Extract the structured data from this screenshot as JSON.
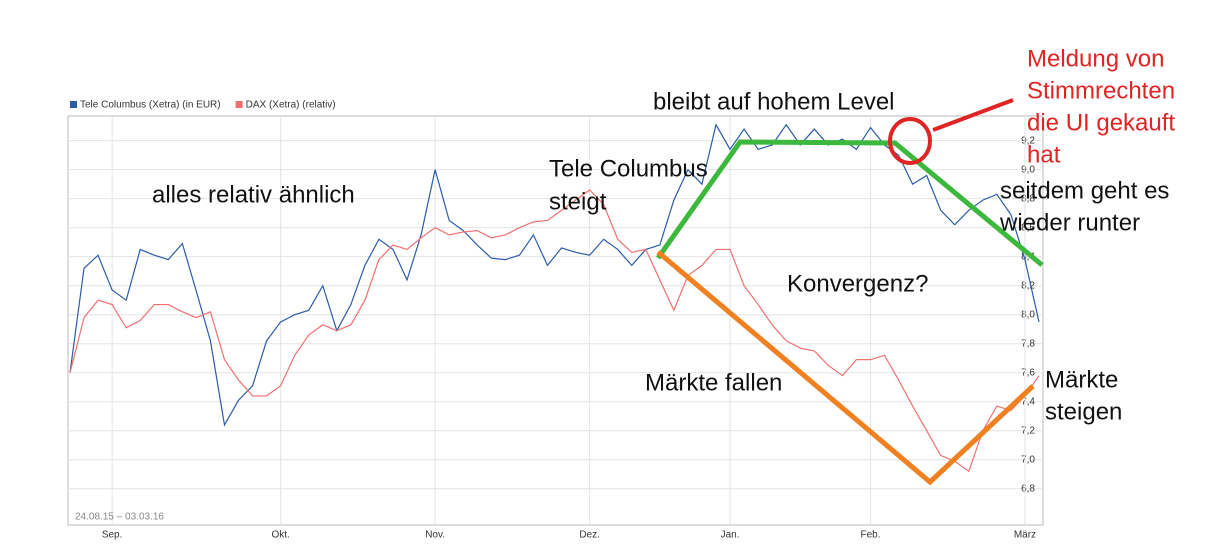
{
  "chart_data": {
    "type": "line",
    "legend": "top-left",
    "date_range": "24.08.15 – 03.03.16",
    "categories": [
      null,
      null,
      null,
      "Sep.",
      null,
      null,
      null,
      null,
      null,
      null,
      null,
      null,
      null,
      null,
      null,
      "Okt.",
      null,
      null,
      null,
      null,
      null,
      null,
      null,
      null,
      null,
      null,
      "Nov.",
      null,
      null,
      null,
      null,
      null,
      null,
      null,
      null,
      null,
      null,
      "Dez.",
      null,
      null,
      null,
      null,
      null,
      null,
      null,
      null,
      null,
      "Jan.",
      null,
      null,
      null,
      null,
      null,
      null,
      null,
      null,
      null,
      "Feb.",
      null,
      null,
      null,
      null,
      null,
      null,
      null,
      null,
      null,
      null,
      "März",
      null
    ],
    "series": [
      {
        "name": "Tele Columbus (Xetra) (in EUR)",
        "color": "#2a5caa",
        "values": [
          7.6,
          8.32,
          8.41,
          8.17,
          8.1,
          8.45,
          8.41,
          8.38,
          8.49,
          8.16,
          7.82,
          7.24,
          7.41,
          7.51,
          7.82,
          7.95,
          8.0,
          8.03,
          8.2,
          7.89,
          8.07,
          8.34,
          8.52,
          8.45,
          8.24,
          8.55,
          9.0,
          8.65,
          8.58,
          8.48,
          8.39,
          8.38,
          8.41,
          8.55,
          8.34,
          8.46,
          8.43,
          8.41,
          8.52,
          8.45,
          8.34,
          8.45,
          8.48,
          8.79,
          9.0,
          8.9,
          9.31,
          9.14,
          9.28,
          9.14,
          9.17,
          9.31,
          9.17,
          9.28,
          9.17,
          9.21,
          9.14,
          9.29,
          9.17,
          9.1,
          8.9,
          8.96,
          8.72,
          8.62,
          8.72,
          8.79,
          8.83,
          8.69,
          8.38,
          7.95
        ]
      },
      {
        "name": "DAX (Xetra) (relativ)",
        "color": "#f07070",
        "values": [
          7.6,
          7.98,
          8.1,
          8.07,
          7.91,
          7.96,
          8.07,
          8.07,
          8.02,
          7.98,
          8.02,
          7.69,
          7.55,
          7.44,
          7.44,
          7.51,
          7.72,
          7.86,
          7.93,
          7.89,
          7.93,
          8.1,
          8.38,
          8.48,
          8.45,
          8.53,
          8.6,
          8.55,
          8.57,
          8.58,
          8.53,
          8.55,
          8.6,
          8.64,
          8.65,
          8.72,
          8.79,
          8.86,
          8.76,
          8.52,
          8.43,
          8.45,
          8.24,
          8.03,
          8.27,
          8.34,
          8.45,
          8.45,
          8.2,
          8.07,
          7.93,
          7.82,
          7.77,
          7.75,
          7.65,
          7.58,
          7.69,
          7.69,
          7.72,
          7.55,
          7.37,
          7.2,
          7.03,
          6.99,
          6.92,
          7.2,
          7.37,
          7.34,
          7.44,
          7.58
        ]
      }
    ],
    "ylim": [
      6.55,
      9.37
    ],
    "yticks": [
      {
        "value": 6.8,
        "label": "6,8"
      },
      {
        "value": 7.0,
        "label": "7,0"
      },
      {
        "value": 7.2,
        "label": "7,2"
      },
      {
        "value": 7.4,
        "label": "7,4"
      },
      {
        "value": 7.6,
        "label": "7,6"
      },
      {
        "value": 7.8,
        "label": "7,8"
      },
      {
        "value": 8.0,
        "label": "8,0"
      },
      {
        "value": 8.2,
        "label": "8,2"
      },
      {
        "value": 8.4,
        "label": "8,4"
      },
      {
        "value": 8.6,
        "label": "8,6"
      },
      {
        "value": 8.8,
        "label": "8,8"
      },
      {
        "value": 9.0,
        "label": "9,0"
      },
      {
        "value": 9.2,
        "label": "9,2"
      }
    ],
    "grid": true,
    "annotations": [
      {
        "lines": [
          "alles relativ ähnlich"
        ]
      },
      {
        "lines": [
          "Tele Columbus",
          "steigt"
        ]
      },
      {
        "lines": [
          "bleibt auf hohem Level"
        ]
      },
      {
        "lines": [
          "Konvergenz?"
        ]
      },
      {
        "lines": [
          "Märkte fallen"
        ]
      },
      {
        "lines": [
          "Märkte",
          "steigen"
        ]
      },
      {
        "lines": [
          "seitdem geht es",
          "wieder runter"
        ]
      },
      {
        "lines": [
          "Meldung von",
          "Stimmrechten",
          "die UI gekauft",
          "hat"
        ]
      }
    ]
  }
}
